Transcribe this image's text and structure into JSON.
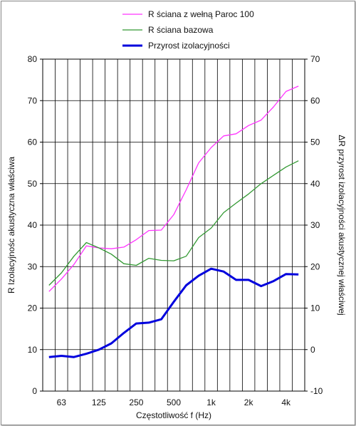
{
  "chart_data": {
    "type": "line",
    "xlabel": "Częstotliwość f  (Hz)",
    "ylabel": "R Izolacyjnośc akustyczna właściwa",
    "y2label": "ΔR przyrost izolacyjności akustycznej właściwej",
    "ylim": [
      0,
      80
    ],
    "y2lim": [
      -10,
      70
    ],
    "yticks": [
      "0",
      "10",
      "20",
      "30",
      "40",
      "50",
      "60",
      "70",
      "80"
    ],
    "y2ticks": [
      "-10",
      "0",
      "10",
      "20",
      "30",
      "40",
      "50",
      "60",
      "70"
    ],
    "xtick_labels": [
      "63",
      "125",
      "250",
      "500",
      "1k",
      "2k",
      "4k"
    ],
    "xtick_positions": [
      1,
      4,
      7,
      10,
      13,
      16,
      19
    ],
    "x_count": 21,
    "grid": true,
    "legend_position": "top",
    "series": [
      {
        "name": "R ściana z wełną Paroc 100",
        "color": "#ff33ff",
        "axis": "left",
        "width": 1.3,
        "values": [
          24,
          27,
          30.5,
          35,
          34.5,
          34.3,
          34.7,
          36.5,
          38.7,
          38.8,
          42.5,
          48.5,
          55,
          58.7,
          61.5,
          62,
          64,
          65.3,
          68.5,
          72.2,
          73.5
        ]
      },
      {
        "name": "R ściana bazowa",
        "color": "#339933",
        "axis": "left",
        "width": 1.3,
        "values": [
          25.5,
          28.5,
          32.5,
          35.8,
          34.5,
          33,
          30.7,
          30.3,
          32,
          31.5,
          31.4,
          32.5,
          37,
          39.3,
          43,
          45.3,
          47.5,
          50,
          52,
          54,
          55.5
        ]
      },
      {
        "name": "Przyrost izolacyjności",
        "color": "#0000dd",
        "axis": "right",
        "width": 3,
        "values": [
          -1.8,
          -1.5,
          -1.8,
          -1,
          0,
          1.5,
          4,
          6.3,
          6.5,
          7.3,
          11.5,
          15.5,
          17.8,
          19.5,
          18.8,
          16.8,
          16.8,
          15.3,
          16.5,
          18.2,
          18.1
        ]
      }
    ]
  }
}
